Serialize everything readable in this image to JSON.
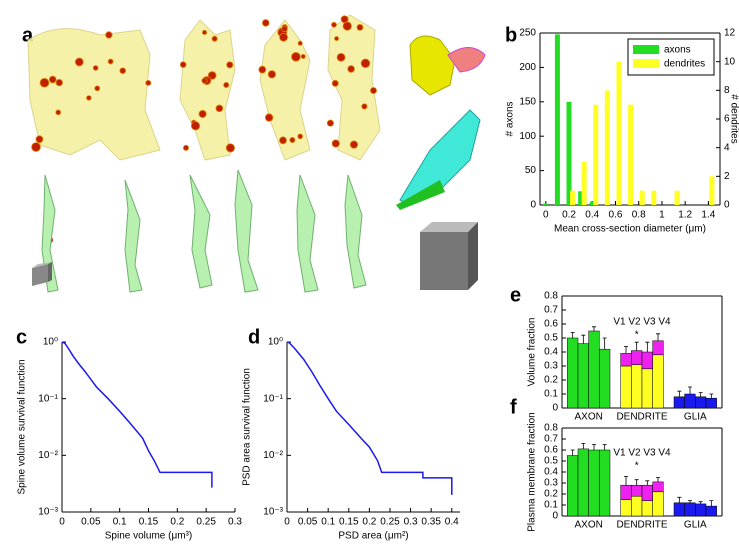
{
  "figure": {
    "panel_a": "a"
  },
  "chart_data": [
    {
      "type": "bar",
      "panel": "b",
      "xlabel": "Mean cross-section diameter (μm)",
      "ylabel": "# axons",
      "y2label": "# dendrites",
      "xlim": [
        -0.05,
        1.5
      ],
      "xticks": [
        0,
        0.2,
        0.4,
        0.6,
        0.8,
        1,
        1.2,
        1.4
      ],
      "ylim": [
        0,
        250
      ],
      "yticks": [
        0,
        50,
        100,
        150,
        200,
        250
      ],
      "y2lim": [
        0,
        12
      ],
      "y2ticks": [
        0,
        2,
        4,
        6,
        8,
        10,
        12
      ],
      "legend": "upper right",
      "box": true,
      "series": [
        {
          "name": "axons",
          "color": "#22dd22",
          "x": [
            0.0,
            0.1,
            0.2,
            0.3,
            0.4
          ],
          "values": [
            2,
            248,
            150,
            20,
            5
          ]
        },
        {
          "name": "dendrites",
          "color": "#ffff22",
          "axis": "y2",
          "x": [
            0.23,
            0.33,
            0.43,
            0.53,
            0.63,
            0.73,
            0.83,
            0.93,
            1.13,
            1.43
          ],
          "values": [
            1,
            3,
            7,
            8,
            10,
            7,
            1,
            1,
            1,
            2
          ]
        }
      ]
    },
    {
      "type": "line",
      "panel": "c",
      "xlabel": "Spine volume (μm³)",
      "ylabel": "Spine volume survival function",
      "xlim": [
        0,
        0.3
      ],
      "xticks": [
        0,
        0.05,
        0.1,
        0.15,
        0.2,
        0.25,
        0.3
      ],
      "log_y": true,
      "ylim": [
        0.001,
        1
      ],
      "yticks": [
        {
          "value": 0.001,
          "label": "10⁻³"
        },
        {
          "value": 0.01,
          "label": "10⁻²"
        },
        {
          "value": 0.1,
          "label": "10⁻¹"
        },
        {
          "value": 1,
          "label": "10⁰"
        }
      ],
      "series": [
        {
          "color": "#1a1aee",
          "x": [
            0,
            0.005,
            0.01,
            0.02,
            0.03,
            0.04,
            0.05,
            0.06,
            0.08,
            0.1,
            0.12,
            0.14,
            0.15,
            0.16,
            0.17,
            0.26,
            0.26
          ],
          "values": [
            1,
            0.95,
            0.8,
            0.55,
            0.4,
            0.3,
            0.22,
            0.16,
            0.1,
            0.06,
            0.035,
            0.02,
            0.012,
            0.008,
            0.005,
            0.005,
            0.0027
          ]
        }
      ]
    },
    {
      "type": "line",
      "panel": "d",
      "xlabel": "PSD area (μm²)",
      "ylabel": "PSD area survival function",
      "xlim": [
        0,
        0.42
      ],
      "xticks": [
        0,
        0.05,
        0.1,
        0.15,
        0.2,
        0.25,
        0.3,
        0.35,
        0.4
      ],
      "log_y": true,
      "ylim": [
        0.001,
        1
      ],
      "yticks": [
        {
          "value": 0.001,
          "label": "10⁻³"
        },
        {
          "value": 0.01,
          "label": "10⁻²"
        },
        {
          "value": 0.1,
          "label": "10⁻¹"
        },
        {
          "value": 1,
          "label": "10⁰"
        }
      ],
      "series": [
        {
          "color": "#1a1aee",
          "x": [
            0,
            0.005,
            0.01,
            0.02,
            0.04,
            0.06,
            0.08,
            0.1,
            0.12,
            0.15,
            0.18,
            0.2,
            0.22,
            0.23,
            0.33,
            0.33,
            0.4,
            0.4
          ],
          "values": [
            1,
            0.97,
            0.9,
            0.75,
            0.5,
            0.3,
            0.17,
            0.1,
            0.06,
            0.035,
            0.02,
            0.014,
            0.008,
            0.005,
            0.005,
            0.004,
            0.004,
            0.002
          ]
        }
      ]
    },
    {
      "type": "stacked_bar",
      "panel": "e",
      "ylabel": "Volume fraction",
      "box": true,
      "ylim": [
        0,
        0.8
      ],
      "yticks": [
        0,
        0.1,
        0.2,
        0.3,
        0.4,
        0.5,
        0.6,
        0.7,
        0.8
      ],
      "annotation": "V1 V2 V3 V4",
      "marker": "*",
      "groups": [
        {
          "label": "AXON",
          "segments": [
            {
              "color": "#22dd22",
              "values": [
                0.5,
                0.46,
                0.55,
                0.42
              ]
            }
          ],
          "errors": [
            0.04,
            0.06,
            0.03,
            0.08
          ]
        },
        {
          "label": "DENDRITE",
          "segments": [
            {
              "color": "#ffff22",
              "values": [
                0.3,
                0.31,
                0.28,
                0.38
              ]
            },
            {
              "color": "#ee22ee",
              "values": [
                0.09,
                0.1,
                0.12,
                0.1
              ]
            }
          ],
          "errors": [
            0.05,
            0.06,
            0.07,
            0.05
          ]
        },
        {
          "label": "GLIA",
          "segments": [
            {
              "color": "#1a1aee",
              "values": [
                0.08,
                0.1,
                0.08,
                0.07
              ]
            }
          ],
          "errors": [
            0.04,
            0.05,
            0.03,
            0.03
          ]
        }
      ]
    },
    {
      "type": "stacked_bar",
      "panel": "f",
      "ylabel": "Plasma membrane fraction",
      "box": true,
      "ylim": [
        0,
        0.8
      ],
      "yticks": [
        0,
        0.1,
        0.2,
        0.3,
        0.4,
        0.5,
        0.6,
        0.7,
        0.8
      ],
      "annotation": "V1 V2 V3 V4",
      "marker": "*",
      "groups": [
        {
          "label": "AXON",
          "segments": [
            {
              "color": "#22dd22",
              "values": [
                0.55,
                0.61,
                0.6,
                0.6
              ]
            }
          ],
          "errors": [
            0.05,
            0.05,
            0.05,
            0.05
          ]
        },
        {
          "label": "DENDRITE",
          "segments": [
            {
              "color": "#ffff22",
              "values": [
                0.15,
                0.18,
                0.14,
                0.22
              ]
            },
            {
              "color": "#ee22ee",
              "values": [
                0.13,
                0.1,
                0.14,
                0.09
              ]
            }
          ],
          "errors": [
            0.08,
            0.05,
            0.04,
            0.04
          ]
        },
        {
          "label": "GLIA",
          "segments": [
            {
              "color": "#1a1aee",
              "values": [
                0.12,
                0.12,
                0.11,
                0.09
              ]
            }
          ],
          "errors": [
            0.05,
            0.02,
            0.02,
            0.05
          ]
        }
      ]
    }
  ]
}
